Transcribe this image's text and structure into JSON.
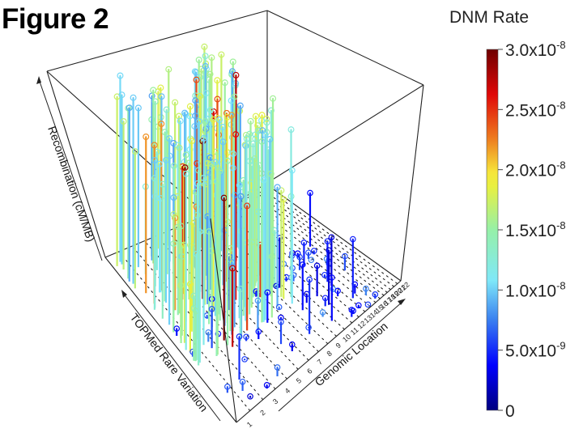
{
  "figure": {
    "title": "Figure 2"
  },
  "chart_data": {
    "type": "scatter",
    "subtype": "3d-lollipop",
    "title": "Figure 2",
    "axes": {
      "x": {
        "label": "Genomic Location",
        "ticks": [
          "1",
          "2",
          "3",
          "4",
          "5",
          "6",
          "7",
          "8",
          "9",
          "10",
          "11",
          "12",
          "13",
          "14",
          "15",
          "16",
          "17",
          "18",
          "19",
          "20",
          "21",
          "22"
        ]
      },
      "y": {
        "label": "TOPMed Rare Variation",
        "ticks": []
      },
      "z": {
        "label": "Recombination (cM/MB)",
        "ticks": []
      }
    },
    "colorbar": {
      "title": "DNM Rate",
      "colormap": "jet",
      "range": [
        0,
        3e-08
      ],
      "ticks": [
        {
          "value": 3e-08,
          "mantissa": "3.0x10",
          "exp": "-8"
        },
        {
          "value": 2.5e-08,
          "mantissa": "2.5x10",
          "exp": "-8"
        },
        {
          "value": 2e-08,
          "mantissa": "2.0x10",
          "exp": "-8"
        },
        {
          "value": 1.5e-08,
          "mantissa": "1.5x10",
          "exp": "-8"
        },
        {
          "value": 1e-08,
          "mantissa": "1.0x10",
          "exp": "-8"
        },
        {
          "value": 5e-09,
          "mantissa": "5.0x10",
          "exp": "-9"
        },
        {
          "value": 0,
          "mantissa": "0",
          "exp": ""
        }
      ]
    },
    "legend": "none",
    "grid": "dashed floor lines per chromosome",
    "notes": "Stems rise from floor positions (genomic location x rare variation) to height = recombination rate; color encodes DNM rate. Approximate representative points.",
    "points_summary": {
      "count_approx": 420,
      "high_recombination_cluster": "chromosomes 1-9, rare variation mid-high",
      "low_dnm_points": "scattered near floor, chromosomes 1-22, blue"
    }
  }
}
